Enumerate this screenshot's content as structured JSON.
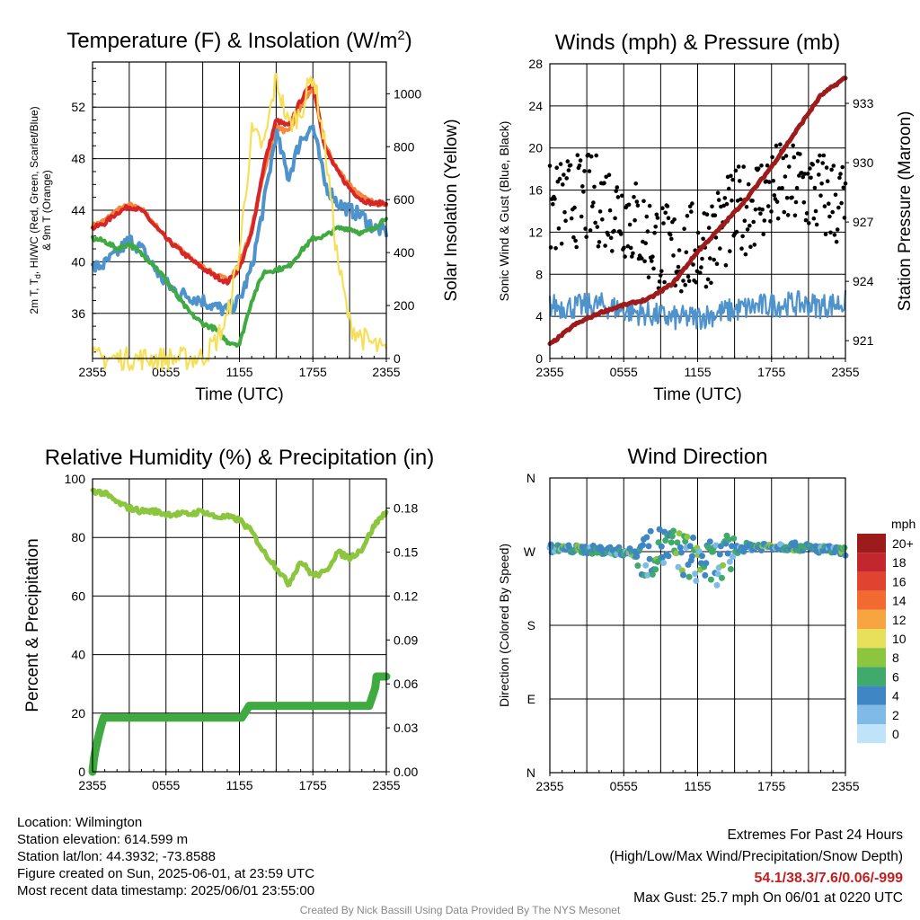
{
  "chart_data": [
    {
      "id": "temp",
      "type": "line",
      "title": "Temperature (F) & Insolation (W/m²)",
      "xlabel": "Time (UTC)",
      "ylabel_lines": [
        "2m T, T",
        "d",
        ", HI/WC (Red, Green, Scarlet/Blue)",
        "& 9m T (Orange)"
      ],
      "ylabel2": "Solar Insolation (Yellow)",
      "x_ticks": [
        "2355",
        "0555",
        "1155",
        "1755",
        "2355"
      ],
      "y_ticks": [
        36,
        40,
        44,
        48,
        52
      ],
      "ylim": [
        32.5,
        55.5
      ],
      "y2_ticks": [
        0,
        200,
        400,
        600,
        800,
        1000
      ],
      "y2lim": [
        0,
        1120
      ],
      "x_hours": [
        0,
        1,
        2,
        3,
        4,
        5,
        6,
        7,
        8,
        9,
        10,
        11,
        12,
        13,
        14,
        15,
        16,
        17,
        18,
        19,
        20,
        21,
        22,
        23,
        24
      ],
      "series": [
        {
          "name": "9m T",
          "color": "#f7883a",
          "axis": "left",
          "values": [
            42.8,
            43.2,
            44.0,
            44.4,
            44.1,
            43.0,
            41.9,
            41.1,
            40.3,
            39.6,
            39.0,
            38.6,
            39.8,
            42.5,
            47.0,
            50.5,
            50.0,
            52.0,
            53.5,
            49.0,
            47.2,
            46.0,
            45.0,
            44.6,
            44.5
          ]
        },
        {
          "name": "2m T",
          "color": "#d62728",
          "axis": "left",
          "values": [
            42.6,
            43.0,
            43.8,
            44.3,
            44.0,
            42.9,
            41.8,
            41.0,
            40.2,
            39.5,
            38.9,
            38.4,
            39.5,
            42.2,
            47.5,
            51.0,
            50.5,
            52.5,
            54.0,
            48.8,
            47.0,
            45.7,
            44.8,
            44.5,
            44.6
          ]
        },
        {
          "name": "HI/WC",
          "color": "#4f93cc",
          "axis": "left",
          "values": [
            39.5,
            39.8,
            40.7,
            41.7,
            41.0,
            39.6,
            38.3,
            37.6,
            37.3,
            37.0,
            36.5,
            36.2,
            37.0,
            39.5,
            44.5,
            50.0,
            46.5,
            49.5,
            50.5,
            46.0,
            44.6,
            44.0,
            43.6,
            42.6,
            42.4
          ]
        },
        {
          "name": "Td",
          "color": "#3faa3f",
          "axis": "left",
          "values": [
            41.8,
            41.6,
            41.0,
            41.4,
            40.6,
            39.8,
            38.6,
            37.2,
            36.0,
            35.2,
            34.8,
            33.8,
            33.6,
            37.0,
            39.2,
            39.4,
            39.6,
            40.8,
            41.8,
            42.0,
            42.6,
            42.6,
            42.2,
            42.6,
            43.5
          ]
        },
        {
          "name": "Insolation",
          "color": "#f6e05a",
          "axis": "right",
          "values": [
            0,
            0,
            0,
            0,
            0,
            0,
            0,
            0,
            0,
            5,
            60,
            150,
            400,
            850,
            800,
            1060,
            880,
            930,
            1080,
            800,
            380,
            130,
            80,
            50,
            20
          ]
        }
      ]
    },
    {
      "id": "wind",
      "type": "scatter",
      "title": "Winds (mph) & Pressure (mb)",
      "xlabel": "Time (UTC)",
      "ylabel": "Sonic Wind & Gust (Blue, Black)",
      "ylabel2": "Station Pressure (Maroon)",
      "x_ticks": [
        "2355",
        "0555",
        "1155",
        "1755",
        "2355"
      ],
      "y_ticks": [
        0,
        4,
        8,
        12,
        16,
        20,
        24,
        28
      ],
      "ylim": [
        0,
        28
      ],
      "y2_ticks": [
        921,
        924,
        927,
        930,
        933
      ],
      "y2lim": [
        920.1,
        935.0
      ],
      "x_hours": [
        0,
        2,
        4,
        6,
        8,
        10,
        12,
        14,
        16,
        18,
        20,
        22,
        24
      ],
      "wind_values": [
        5.0,
        4.9,
        5.1,
        4.6,
        4.2,
        3.8,
        3.9,
        4.4,
        4.8,
        5.1,
        5.2,
        5.0,
        5.3
      ],
      "gust_centers": [
        14,
        15,
        15,
        14,
        11.5,
        10,
        10.5,
        12.5,
        14.5,
        16,
        16.5,
        15.5,
        14.5
      ],
      "pressure_values": [
        920.8,
        921.8,
        922.4,
        922.8,
        923.1,
        923.9,
        925.5,
        926.8,
        928.2,
        929.8,
        931.6,
        933.4,
        934.3
      ],
      "wind_color": "#4f93cc",
      "gust_color": "#000000",
      "pressure_color": "#9e1b1b"
    },
    {
      "id": "rh",
      "type": "line",
      "title": "Relative Humidity (%) & Precipitation (in)",
      "ylabel": "Percent & Precipitation",
      "x_ticks": [
        "2355",
        "0555",
        "1155",
        "1755",
        "2355"
      ],
      "y_ticks": [
        0,
        20,
        40,
        60,
        80,
        100
      ],
      "ylim": [
        0,
        100
      ],
      "y2_ticks": [
        "0.00",
        "0.03",
        "0.06",
        "0.09",
        "0.12",
        "0.15",
        "0.18"
      ],
      "y2lim": [
        0,
        0.2
      ],
      "x_hours": [
        0,
        1,
        2,
        3,
        4,
        5,
        6,
        7,
        8,
        9,
        10,
        11,
        12,
        13,
        14,
        15,
        16,
        17,
        18,
        19,
        20,
        21,
        22,
        23,
        24
      ],
      "series": [
        {
          "name": "Relative Humidity",
          "color": "#8cc63f",
          "values": [
            96,
            95,
            92,
            90,
            89,
            89,
            88,
            88,
            88,
            89,
            87,
            87,
            86,
            82,
            75,
            70,
            64,
            72,
            67,
            68,
            75,
            73,
            76,
            84,
            89
          ]
        },
        {
          "name": "Precipitation",
          "color": "#3faa3f",
          "values": [
            0,
            0.037,
            0.037,
            0.037,
            0.037,
            0.037,
            0.037,
            0.037,
            0.037,
            0.037,
            0.037,
            0.037,
            0.037,
            0.045,
            0.045,
            0.045,
            0.045,
            0.045,
            0.045,
            0.045,
            0.045,
            0.045,
            0.045,
            0.06,
            0.065
          ]
        }
      ]
    },
    {
      "id": "dir",
      "type": "scatter",
      "title": "Wind Direction",
      "ylabel": "Direction (Colored By Speed)",
      "x_ticks": [
        "2355",
        "0555",
        "1155",
        "1755",
        "2355"
      ],
      "y_ticks": [
        "N",
        "E",
        "S",
        "W",
        "N"
      ],
      "y_tick_degrees": [
        0,
        90,
        180,
        270,
        360
      ],
      "legend_title": "mph",
      "legend_labels": [
        "20+",
        "18",
        "16",
        "14",
        "12",
        "10",
        "8",
        "6",
        "4",
        "2",
        "0"
      ],
      "legend_colors": [
        "#9e1b1b",
        "#c1272d",
        "#e0432f",
        "#f26a30",
        "#f7a541",
        "#e8e05a",
        "#8cc63f",
        "#3faa6b",
        "#3f86c4",
        "#7fbbe6",
        "#bfe3f8"
      ],
      "x_hours": [
        0,
        2,
        4,
        6,
        7,
        8,
        9,
        10,
        11,
        12,
        13,
        14,
        15,
        16,
        18,
        20,
        22,
        24
      ],
      "direction_values": [
        274,
        273,
        272,
        270,
        268,
        266,
        275,
        272,
        266,
        259,
        255,
        257,
        272,
        276,
        277,
        276,
        273,
        270
      ]
    }
  ],
  "info": {
    "location": "Location: Wilmington",
    "elevation": "Station elevation: 614.599 m",
    "latlon": "Station lat/lon: 44.3932; -73.8588",
    "created": "Figure created on Sun, 2025-06-01, at 23:59 UTC",
    "recent": "Most recent data timestamp: 2025/06/01 23:55:00"
  },
  "extremes": {
    "title": "Extremes For Past 24 Hours",
    "subtitle": "(High/Low/Max Wind/Precipitation/Snow Depth)",
    "values": "54.1/38.3/7.6/0.06/-999",
    "max_gust": "Max Gust: 25.7 mph On 06/01 at 0220 UTC"
  },
  "credit": "Created By Nick Bassill Using Data Provided By The NYS Mesonet"
}
